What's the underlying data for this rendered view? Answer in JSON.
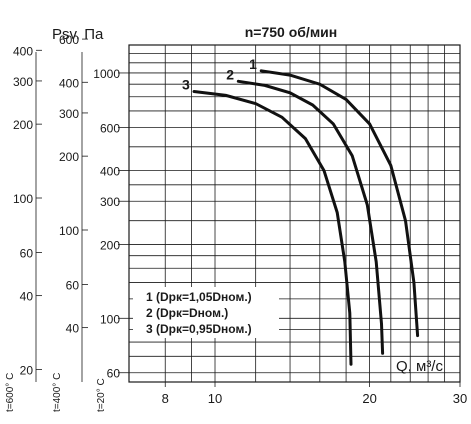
{
  "chart_data": {
    "type": "line",
    "title": "n=750 об/мин",
    "ylabel": "Psv, Па",
    "xlabel": "Q, м³/с",
    "x_scale": "log",
    "y_scale": "log",
    "xlim": [
      6.8,
      30
    ],
    "ylim": [
      55,
      1300
    ],
    "x_ticks": [
      "8",
      "10",
      "20",
      "30"
    ],
    "axis_t20": {
      "label": "t=20° C",
      "ticks": [
        "1000",
        "600",
        "400",
        "300",
        "200",
        "100",
        "60"
      ]
    },
    "axis_t400": {
      "label": "t=400° C",
      "ticks": [
        "600",
        "400",
        "300",
        "200",
        "100",
        "60",
        "40"
      ]
    },
    "axis_t600": {
      "label": "t=600° C",
      "ticks": [
        "400",
        "300",
        "200",
        "100",
        "60",
        "40",
        "20"
      ]
    },
    "series": [
      {
        "name": "1 (Dpк=1,05Dном.)",
        "curve_label": "1",
        "points": [
          [
            12.3,
            1020
          ],
          [
            14,
            980
          ],
          [
            16,
            900
          ],
          [
            18,
            780
          ],
          [
            20,
            620
          ],
          [
            22,
            420
          ],
          [
            23.5,
            250
          ],
          [
            24.4,
            140
          ],
          [
            24.8,
            85
          ]
        ]
      },
      {
        "name": "2 (Dpк=Dном.)",
        "curve_label": "2",
        "points": [
          [
            11.1,
            925
          ],
          [
            12.5,
            890
          ],
          [
            14,
            830
          ],
          [
            15.5,
            740
          ],
          [
            17,
            620
          ],
          [
            18.5,
            460
          ],
          [
            19.8,
            290
          ],
          [
            20.6,
            170
          ],
          [
            21.1,
            95
          ],
          [
            21.2,
            72
          ]
        ]
      },
      {
        "name": "3 (Dpк=0,95Dном.)",
        "curve_label": "3",
        "points": [
          [
            9.1,
            840
          ],
          [
            10.5,
            810
          ],
          [
            12,
            750
          ],
          [
            13.5,
            660
          ],
          [
            15,
            540
          ],
          [
            16.3,
            400
          ],
          [
            17.3,
            270
          ],
          [
            17.9,
            170
          ],
          [
            18.3,
            105
          ],
          [
            18.4,
            65
          ]
        ]
      }
    ]
  }
}
